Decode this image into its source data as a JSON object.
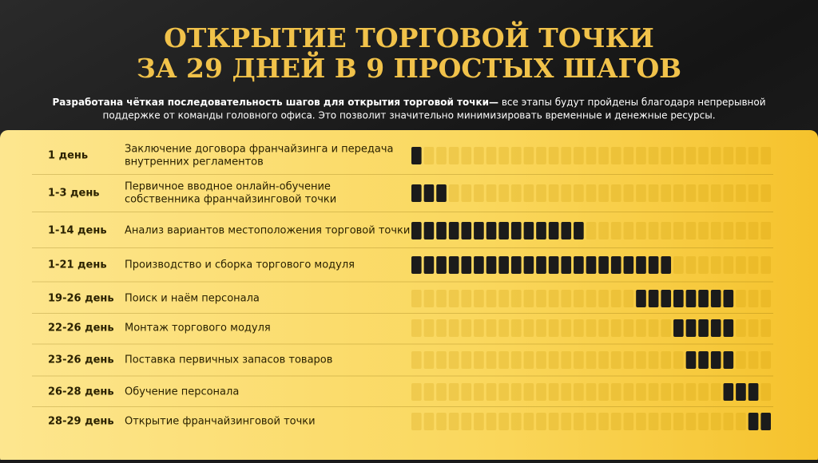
{
  "header": {
    "title": [
      "ОТКРЫТИЕ ТОРГОВОЙ ТОЧКИ",
      "ЗА 29 ДНЕЙ В 9 ПРОСТЫХ ШАГОВ"
    ],
    "subtitle": {
      "emphasis": "Разработана чёткая последовательность шагов для открытия торговой точки—",
      "lines": [
        " все этапы будут пройдены благодаря непрерывной",
        "поддержке от команды головного офиса. Это позволит значительно минимизировать временные и денежные ресурсы."
      ]
    }
  },
  "timeline": {
    "days": 29,
    "rows": [
      {
        "period": "1 день",
        "task": [
          "Заключение договора франчайзинга и передача",
          "внутренних регламентов"
        ],
        "start": 1,
        "end": 1
      },
      {
        "period": "1-3 день",
        "task": [
          "Первичное вводное онлайн-обучение",
          "собственника франчайзинговой точки"
        ],
        "start": 1,
        "end": 3
      },
      {
        "period": "1-14 день",
        "task": [
          "Анализ вариантов местоположения торговой точки"
        ],
        "start": 1,
        "end": 14
      },
      {
        "period": "1-21 день",
        "task": [
          "Производство и сборка торгового модуля"
        ],
        "start": 1,
        "end": 21
      },
      {
        "period": "19-26 день",
        "task": [
          "Поиск и наём персонала"
        ],
        "start": 19,
        "end": 26
      },
      {
        "period": "22-26 день",
        "task": [
          "Монтаж торгового модуля"
        ],
        "start": 22,
        "end": 26
      },
      {
        "period": "23-26 день",
        "task": [
          "Поставка первичных запасов товаров"
        ],
        "start": 23,
        "end": 26
      },
      {
        "period": "26-28 день",
        "task": [
          "Обучение персонала"
        ],
        "start": 26,
        "end": 28
      },
      {
        "period": "28-29 день",
        "task": [
          "Открытие франчайзинговой точки"
        ],
        "start": 28,
        "end": 29
      }
    ]
  }
}
